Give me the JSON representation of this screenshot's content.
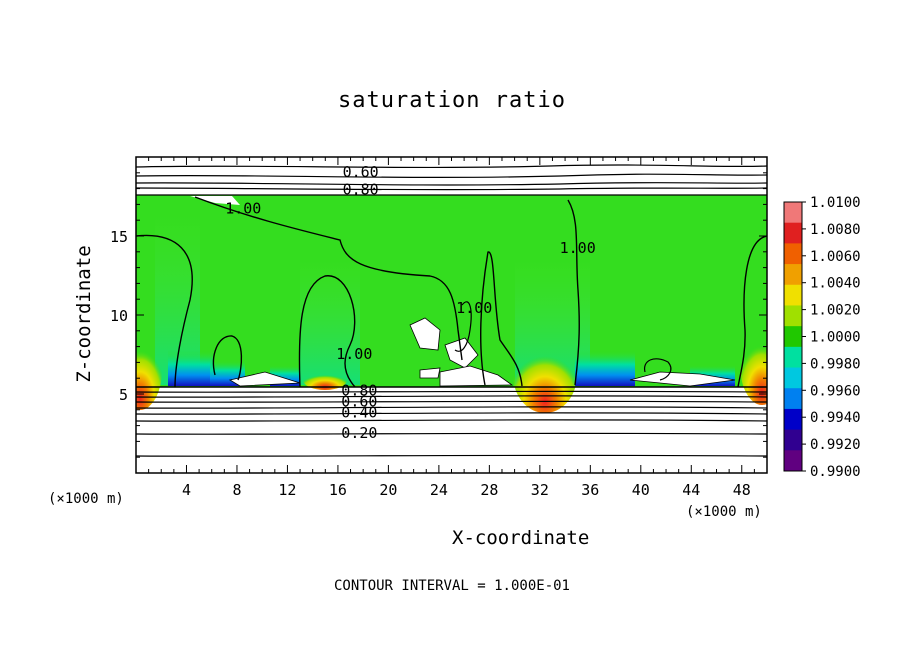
{
  "chart_data": {
    "type": "heatmap",
    "title": "saturation ratio",
    "xlabel": "X-coordinate",
    "ylabel": "Z-coordinate",
    "x_unit_label": "(×1000 m)",
    "x_unit_label_right": "(×1000 m)",
    "xlim": [
      0,
      50
    ],
    "ylim": [
      0,
      20
    ],
    "x_ticks": [
      4,
      8,
      12,
      16,
      20,
      24,
      28,
      32,
      36,
      40,
      44,
      48
    ],
    "y_ticks": [
      5,
      10,
      15
    ],
    "colorbar": {
      "levels": [
        "1.0100",
        "1.0080",
        "1.0060",
        "1.0040",
        "1.0020",
        "1.0000",
        "0.9980",
        "0.9960",
        "0.9940",
        "0.9920",
        "0.9900"
      ],
      "colors": [
        "#f07878",
        "#e02020",
        "#f06000",
        "#f0a000",
        "#f0e000",
        "#a0e000",
        "#20c800",
        "#00e0a0",
        "#00c8e0",
        "#0080f0",
        "#0000c8",
        "#300090",
        "#600080"
      ]
    },
    "contour_labels": [
      {
        "text": "0.60",
        "x": 17.8,
        "y": 19.1
      },
      {
        "text": "0.80",
        "x": 17.8,
        "y": 18.0
      },
      {
        "text": "1.00",
        "x": 8.5,
        "y": 16.8
      },
      {
        "text": "1.00",
        "x": 35.0,
        "y": 14.3
      },
      {
        "text": "1.00",
        "x": 26.8,
        "y": 10.5
      },
      {
        "text": "1.00",
        "x": 17.3,
        "y": 7.6
      },
      {
        "text": "0.80",
        "x": 17.7,
        "y": 5.3
      },
      {
        "text": "0.60",
        "x": 17.7,
        "y": 4.6
      },
      {
        "text": "0.40",
        "x": 17.7,
        "y": 3.9
      },
      {
        "text": "0.20",
        "x": 17.7,
        "y": 2.6
      }
    ],
    "contour_interval_label": "CONTOUR INTERVAL = 1.000E-01"
  },
  "colors": {
    "saturated_field": "#34dd1f",
    "frame": "#000000"
  }
}
